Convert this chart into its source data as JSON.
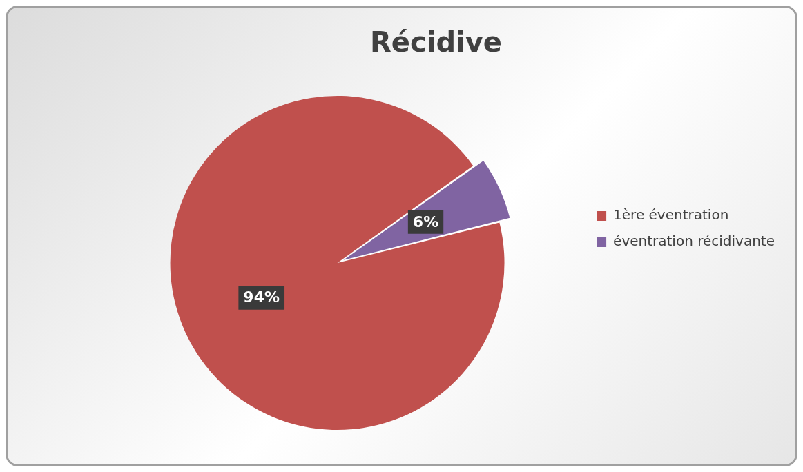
{
  "chart_data": {
    "type": "pie",
    "title": "Récidive",
    "categories": [
      "1ère éventration",
      "éventration récidivante"
    ],
    "values": [
      94,
      6
    ],
    "value_labels": [
      "94%",
      "6%"
    ],
    "colors": [
      "#c0504d",
      "#8064a2"
    ],
    "legend": "right"
  }
}
